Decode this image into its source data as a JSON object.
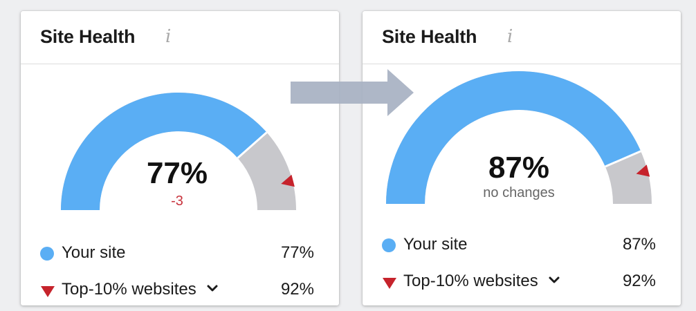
{
  "before": {
    "title": "Site Health",
    "info_icon_glyph": "i",
    "score": "77%",
    "change": "-3",
    "gauge_fraction": 0.77,
    "legend": [
      {
        "label": "Your site",
        "value": "77%"
      },
      {
        "label": "Top-10% websites",
        "value": "92%"
      }
    ]
  },
  "after": {
    "title": "Site Health",
    "info_icon_glyph": "i",
    "score": "87%",
    "change": "no changes",
    "gauge_fraction": 0.87,
    "legend": [
      {
        "label": "Your site",
        "value": "87%"
      },
      {
        "label": "Top-10% websites",
        "value": "92%"
      }
    ]
  },
  "top10_fraction": 0.92,
  "colors": {
    "your_site": "#5aaef4",
    "remaining": "#c8c8cc",
    "top10_marker": "#c6232c",
    "negative_delta": "#c8323c",
    "arrow": "#a7b1c2"
  },
  "icons": [
    "info-icon",
    "chevron-down-icon",
    "transition-arrow-icon"
  ]
}
